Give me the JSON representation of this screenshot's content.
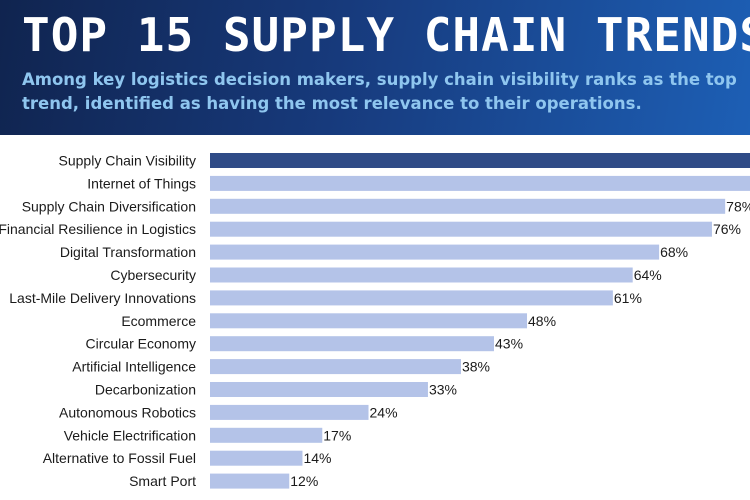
{
  "header": {
    "title": "TOP 15 SUPPLY CHAIN TRENDS",
    "subtitle": "Among key logistics decision makers, supply chain visibility ranks as the top trend, identified as having the most relevance to their operations."
  },
  "colors": {
    "highlight_bar": "#2f4b87",
    "bar": "#b4c3e8",
    "banner_dark": "#10244f",
    "banner_light": "#1d5fb5",
    "subtitle": "#8fc6ef"
  },
  "chart_data": {
    "type": "bar",
    "orientation": "horizontal",
    "title": "",
    "xlabel": "",
    "ylabel": "",
    "value_suffix": "%",
    "xlim": [
      0,
      90
    ],
    "grid": false,
    "legend": "none",
    "highlight_index": 0,
    "categories": [
      "Supply Chain Visibility",
      "Internet of Things",
      "Supply Chain Diversification",
      "Financial Resilience in Logistics",
      "Digital Transformation",
      "Cybersecurity",
      "Last-Mile Delivery Innovations",
      "Ecommerce",
      "Circular Economy",
      "Artificial Intelligence",
      "Decarbonization",
      "Autonomous Robotics",
      "Vehicle Electrification",
      "Alternative to Fossil Fuel",
      "Smart Port"
    ],
    "values": [
      86,
      85,
      78,
      76,
      68,
      64,
      61,
      48,
      43,
      38,
      33,
      24,
      17,
      14,
      12
    ]
  }
}
